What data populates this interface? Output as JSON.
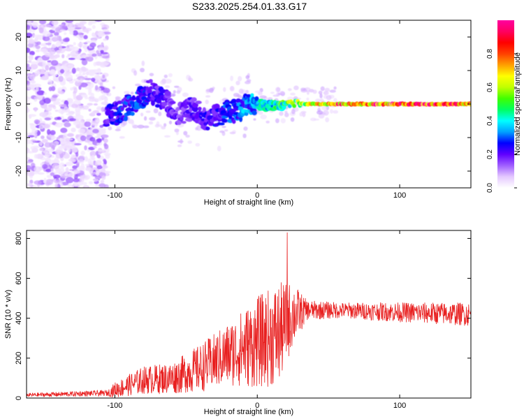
{
  "title": "S233.2025.254.01.33.G17",
  "chart_data": [
    {
      "type": "heatmap",
      "title": "S233.2025.254.01.33.G17",
      "xlabel": "Height of straight line (km)",
      "ylabel": "Frequency (Hz)",
      "xlim": [
        -162,
        150
      ],
      "ylim": [
        -25,
        25
      ],
      "xticks": [
        -100,
        0,
        100
      ],
      "yticks": [
        -20,
        -10,
        0,
        10,
        20
      ],
      "grid": false,
      "colorbar": {
        "label": "Normalized spectral amplitude",
        "range": [
          0,
          1
        ],
        "ticks": [
          "0.0",
          "0.2",
          "0.4",
          "0.6",
          "0.8"
        ],
        "colormap": [
          "#ffffff",
          "#e4c8ff",
          "#a060ff",
          "#6000ff",
          "#0000ff",
          "#00a0ff",
          "#00ffff",
          "#00ff60",
          "#40ff00",
          "#c0ff00",
          "#ffff00",
          "#ffa000",
          "#ff4000",
          "#ff0000",
          "#ff0060",
          "#ff00a0"
        ]
      },
      "ridge": [
        {
          "x": -105,
          "f": -4,
          "amp": 0.25
        },
        {
          "x": -95,
          "f": -2,
          "amp": 0.28
        },
        {
          "x": -85,
          "f": 1,
          "amp": 0.3
        },
        {
          "x": -75,
          "f": 4,
          "amp": 0.25
        },
        {
          "x": -65,
          "f": 1,
          "amp": 0.22
        },
        {
          "x": -55,
          "f": -3,
          "amp": 0.2
        },
        {
          "x": -45,
          "f": -1,
          "amp": 0.22
        },
        {
          "x": -35,
          "f": -5,
          "amp": 0.25
        },
        {
          "x": -25,
          "f": -3,
          "amp": 0.28
        },
        {
          "x": -15,
          "f": -2,
          "amp": 0.32
        },
        {
          "x": -5,
          "f": 0,
          "amp": 0.38
        },
        {
          "x": 10,
          "f": -0.5,
          "amp": 0.45
        },
        {
          "x": 25,
          "f": 0,
          "amp": 0.6
        },
        {
          "x": 40,
          "f": 0,
          "amp": 0.75
        },
        {
          "x": 60,
          "f": 0,
          "amp": 0.9
        },
        {
          "x": 100,
          "f": 0,
          "amp": 0.95
        },
        {
          "x": 130,
          "f": 0,
          "amp": 0.92
        },
        {
          "x": 148,
          "f": 0,
          "amp": 0.85
        }
      ]
    },
    {
      "type": "line",
      "xlabel": "Height of straight line (km)",
      "ylabel": "SNR (10 * v/v)",
      "xlim": [
        -162,
        150
      ],
      "ylim": [
        0,
        840
      ],
      "xticks": [
        -100,
        0,
        100
      ],
      "yticks": [
        0,
        200,
        400,
        600,
        800
      ],
      "grid": false,
      "color": "#e82020",
      "envelope": [
        {
          "x": -162,
          "base": 15,
          "spread": 10
        },
        {
          "x": -105,
          "base": 25,
          "spread": 15
        },
        {
          "x": -100,
          "base": 40,
          "spread": 40
        },
        {
          "x": -80,
          "base": 90,
          "spread": 70
        },
        {
          "x": -60,
          "base": 100,
          "spread": 80
        },
        {
          "x": -40,
          "base": 150,
          "spread": 120
        },
        {
          "x": -20,
          "base": 220,
          "spread": 160
        },
        {
          "x": 0,
          "base": 280,
          "spread": 230
        },
        {
          "x": 15,
          "base": 320,
          "spread": 260
        },
        {
          "x": 25,
          "base": 420,
          "spread": 160
        },
        {
          "x": 35,
          "base": 440,
          "spread": 50
        },
        {
          "x": 60,
          "base": 440,
          "spread": 40
        },
        {
          "x": 100,
          "base": 430,
          "spread": 50
        },
        {
          "x": 150,
          "base": 420,
          "spread": 60
        }
      ],
      "peak": {
        "x": 21,
        "y": 830
      }
    }
  ]
}
